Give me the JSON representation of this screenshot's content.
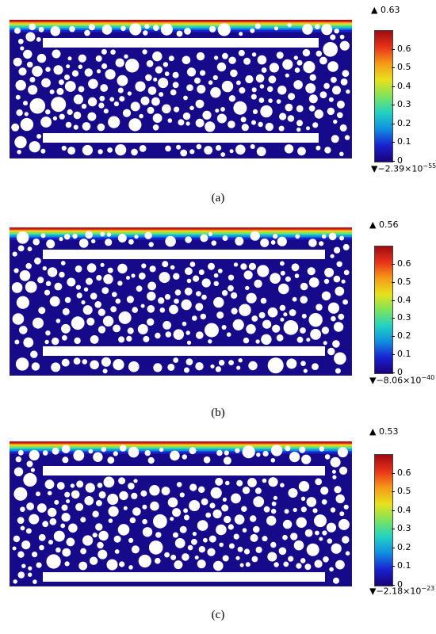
{
  "colorbar": {
    "ticks": [
      "0",
      "0.1",
      "0.2",
      "0.3",
      "0.4",
      "0.5",
      "0.6"
    ],
    "tick_values": [
      0,
      0.1,
      0.2,
      0.3,
      0.4,
      0.5,
      0.6
    ],
    "range": [
      0,
      0.7
    ],
    "colormap": [
      "#1a0078",
      "#1822d0",
      "#108fe0",
      "#22d2c2",
      "#7ee35c",
      "#e8e11c",
      "#f59a18",
      "#e8331a",
      "#9e0a10"
    ]
  },
  "panels": [
    {
      "caption": "(a)",
      "max_label": "▲ 0.63",
      "min_text": "▼−2.39×10",
      "min_exp": "−55"
    },
    {
      "caption": "(b)",
      "max_label": "▲ 0.56",
      "min_text": "▼−8.06×10",
      "min_exp": "−40"
    },
    {
      "caption": "(c)",
      "max_label": "▲ 0.53",
      "min_text": "▼−2.18×10",
      "min_exp": "−23"
    }
  ]
}
